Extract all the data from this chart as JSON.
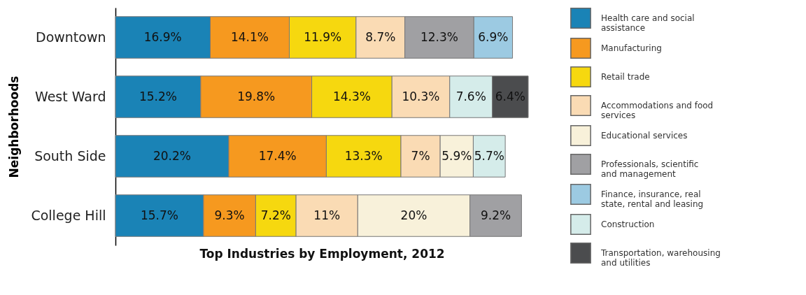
{
  "chart_data": {
    "type": "bar",
    "orientation": "horizontal",
    "stacked": true,
    "xlabel": "Top Industries by Employment, 2012",
    "ylabel": "Neighborhoods",
    "categories": [
      "Downtown",
      "West Ward",
      "South Side",
      "College Hill"
    ],
    "series": [
      {
        "name": "Health care and social assistance",
        "color": "#1a83b6",
        "values": [
          16.9,
          15.2,
          20.2,
          15.7
        ],
        "value_labels": [
          "16.9%",
          "15.2%",
          "20.2%",
          "15.7%"
        ]
      },
      {
        "name": "Manufacturing",
        "color": "#f6991f",
        "values": [
          14.1,
          19.8,
          17.4,
          9.3
        ],
        "value_labels": [
          "14.1%",
          "19.8%",
          "17.4%",
          "9.3%"
        ]
      },
      {
        "name": "Retail trade",
        "color": "#f6d80f",
        "values": [
          11.9,
          14.3,
          13.3,
          7.2
        ],
        "value_labels": [
          "11.9%",
          "14.3%",
          "13.3%",
          "7.2%"
        ]
      },
      {
        "name": "Accommodations and food services",
        "color": "#fadbb4",
        "values": [
          8.7,
          10.3,
          7,
          11
        ],
        "value_labels": [
          "8.7%",
          "10.3%",
          "7%",
          "11%"
        ]
      },
      {
        "name": "Educational services",
        "color": "#f8f1da",
        "values": [
          null,
          null,
          5.9,
          20
        ],
        "value_labels": [
          null,
          null,
          "5.9%",
          "20%"
        ]
      },
      {
        "name": "Professionals, scientific and management",
        "color": "#a0a0a3",
        "values": [
          12.3,
          null,
          null,
          9.2
        ],
        "value_labels": [
          "12.3%",
          null,
          null,
          "9.2%"
        ]
      },
      {
        "name": "Finance, insurance, real state, rental and leasing",
        "color": "#9ccae2",
        "values": [
          6.9,
          null,
          null,
          null
        ],
        "value_labels": [
          "6.9%",
          null,
          null,
          null
        ]
      },
      {
        "name": "Construction",
        "color": "#d5ecea",
        "values": [
          null,
          7.6,
          5.7,
          null
        ],
        "value_labels": [
          null,
          "7.6%",
          "5.7%",
          null
        ]
      },
      {
        "name": "Transportation, warehousing and utilities",
        "color": "#4b4c4e",
        "values": [
          null,
          6.4,
          null,
          null
        ],
        "value_labels": [
          null,
          "6.4%",
          null,
          null
        ]
      }
    ],
    "legend": "right",
    "tick_labels": "y"
  }
}
